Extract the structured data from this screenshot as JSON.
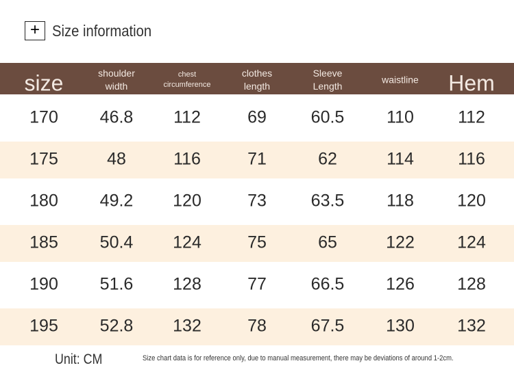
{
  "header": {
    "title": "Size information"
  },
  "table": {
    "columns": [
      [
        "size"
      ],
      [
        "shoulder",
        "width"
      ],
      [
        "chest",
        "circumference"
      ],
      [
        "clothes",
        "length"
      ],
      [
        "Sleeve",
        "Length"
      ],
      [
        "waistline"
      ],
      [
        "Hem"
      ]
    ],
    "rows": [
      [
        "170",
        "46.8",
        "112",
        "69",
        "60.5",
        "110",
        "112"
      ],
      [
        "175",
        "48",
        "116",
        "71",
        "62",
        "114",
        "116"
      ],
      [
        "180",
        "49.2",
        "120",
        "73",
        "63.5",
        "118",
        "120"
      ],
      [
        "185",
        "50.4",
        "124",
        "75",
        "65",
        "122",
        "124"
      ],
      [
        "190",
        "51.6",
        "128",
        "77",
        "66.5",
        "126",
        "128"
      ],
      [
        "195",
        "52.8",
        "132",
        "78",
        "67.5",
        "130",
        "132"
      ]
    ]
  },
  "footer": {
    "unit": "Unit: CM",
    "note": "Size chart data is for reference only, due to manual measurement, there may be deviations of around 1-2cm."
  }
}
